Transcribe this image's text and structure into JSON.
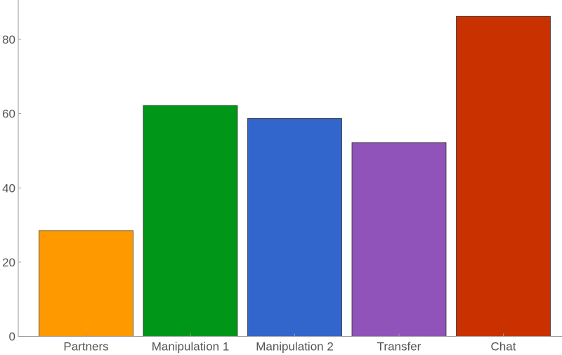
{
  "chart_data": {
    "type": "bar",
    "categories": [
      "Partners",
      "Manipulation 1",
      "Manipulation 2",
      "Transfer",
      "Chat"
    ],
    "values": [
      28.5,
      62.2,
      58.7,
      52.2,
      86.2
    ],
    "colors": [
      "#ff9900",
      "#009618",
      "#3266cc",
      "#9053b9",
      "#c93200"
    ],
    "ylim": [
      0,
      88
    ],
    "yticks": [
      0,
      20,
      40,
      60,
      80
    ],
    "title": "",
    "xlabel": "",
    "ylabel": "",
    "grid": false,
    "legend": "none"
  }
}
